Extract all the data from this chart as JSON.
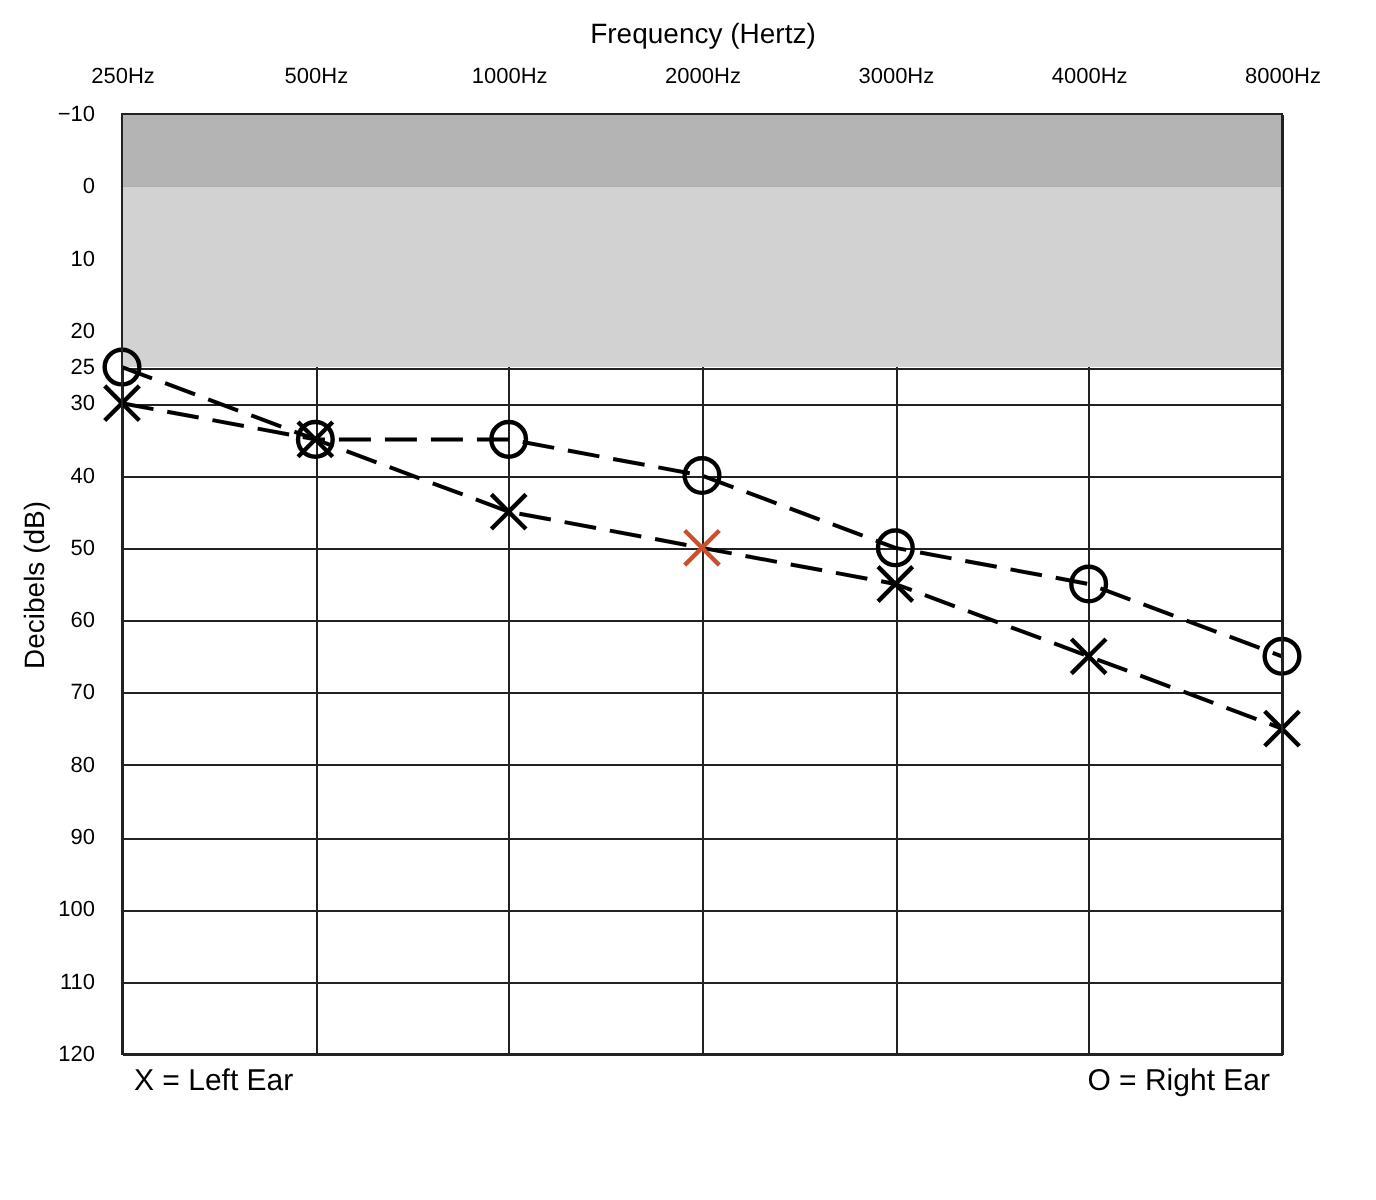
{
  "chart_data": {
    "type": "line",
    "xlabel": "Frequency (Hertz)",
    "ylabel": "Decibels (dB)",
    "categories": [
      "250Hz",
      "500Hz",
      "1000Hz",
      "2000Hz",
      "3000Hz",
      "4000Hz",
      "8000Hz"
    ],
    "ylim": [
      120,
      -10
    ],
    "yticks": [
      -10,
      0,
      10,
      20,
      25,
      30,
      40,
      50,
      60,
      70,
      80,
      90,
      100,
      110,
      120
    ],
    "grid": true,
    "line_style": "dashed",
    "series": [
      {
        "color": "#000000",
        "marker": "circle",
        "values": [
          25,
          35,
          35,
          40,
          50,
          55,
          65
        ]
      },
      {
        "color": "#000000",
        "marker": "cross",
        "colors": [
          "#000000",
          "#000000",
          "#000000",
          "#c8502d",
          "#000000",
          "#000000",
          "#000000"
        ],
        "values": [
          30,
          35,
          45,
          50,
          55,
          65,
          75
        ]
      }
    ],
    "bands": [
      {
        "axis": "y",
        "from": -10,
        "to": 0,
        "color": "#b4b4b4"
      },
      {
        "axis": "y",
        "from": 0,
        "to": 25,
        "color": "#d2d2d2"
      }
    ],
    "annotations": [
      "X = Left Ear",
      "O = Right Ear"
    ]
  }
}
